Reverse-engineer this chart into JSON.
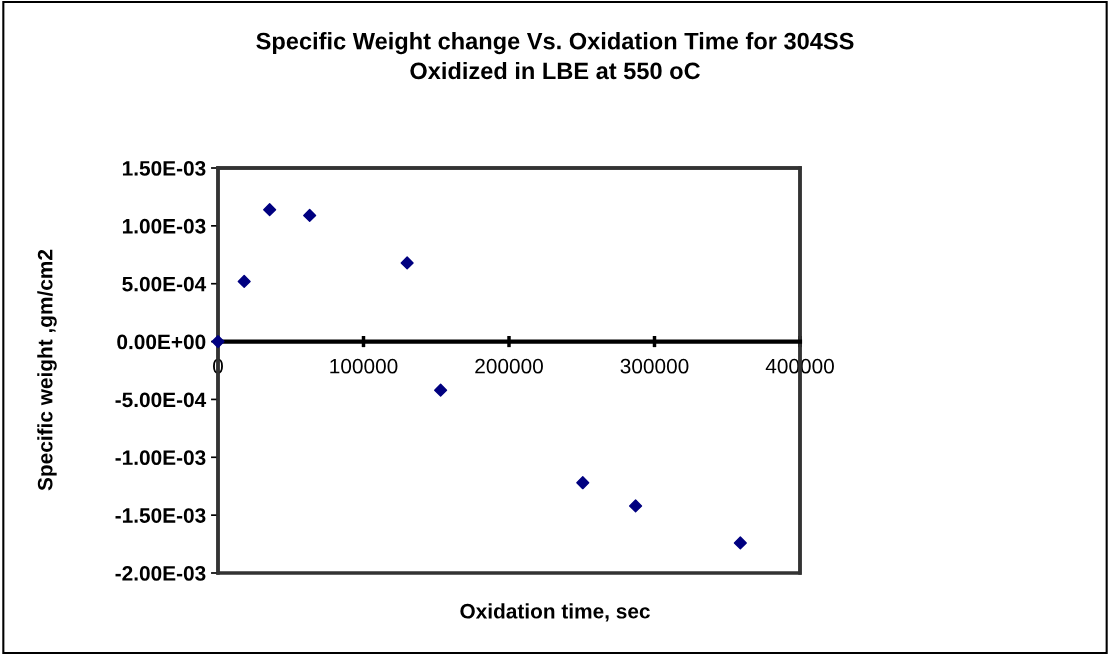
{
  "chart_data": {
    "type": "scatter",
    "title": "Specific Weight change Vs. Oxidation Time for 304SS\nOxidized in LBE at 550 oC",
    "xlabel": "Oxidation time, sec",
    "ylabel": "Specific weight ,gm/cm2",
    "x": [
      0,
      18000,
      35500,
      63000,
      130000,
      153000,
      250700,
      287000,
      359000
    ],
    "series": [
      {
        "color": "#000080",
        "values": [
          0,
          0.00052,
          0.00114,
          0.00109,
          0.00068,
          -0.00042,
          -0.00122,
          -0.00142,
          -0.00174
        ]
      }
    ],
    "marker": "diamond",
    "grid": false,
    "legend": false,
    "xlim": [
      0,
      400000
    ],
    "xticks": [
      0,
      100000,
      200000,
      300000,
      400000
    ],
    "ylim": [
      -0.002,
      0.0015
    ],
    "yticks": [
      {
        "value": -0.002,
        "label": "-2.00E-03"
      },
      {
        "value": -0.0015,
        "label": "-1.50E-03"
      },
      {
        "value": -0.001,
        "label": "-1.00E-03"
      },
      {
        "value": -0.0005,
        "label": "-5.00E-04"
      },
      {
        "value": 0,
        "label": "0.00E+00"
      },
      {
        "value": 0.0005,
        "label": "5.00E-04"
      },
      {
        "value": 0.001,
        "label": "1.00E-03"
      },
      {
        "value": 0.0015,
        "label": "1.50E-03"
      }
    ]
  }
}
